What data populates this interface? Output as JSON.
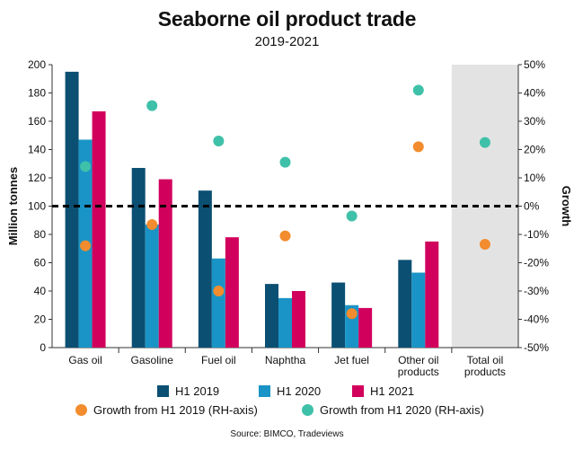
{
  "chart_data": {
    "type": "bar",
    "title": "Seaborne oil product trade",
    "subtitle": "2019-2021",
    "ylabel": "Million tonnes",
    "y2label": "Growth",
    "ylim": [
      0,
      200
    ],
    "yticks": [
      0,
      20,
      40,
      60,
      80,
      100,
      120,
      140,
      160,
      180,
      200
    ],
    "y2lim": [
      -50,
      50
    ],
    "y2ticks": [
      "-50%",
      "-40%",
      "-30%",
      "-20%",
      "-10%",
      "0%",
      "10%",
      "20%",
      "30%",
      "40%",
      "50%"
    ],
    "categories": [
      "Gas oil",
      "Gasoline",
      "Fuel oil",
      "Naphtha",
      "Jet fuel",
      "Other oil products",
      "Total oil products"
    ],
    "series": [
      {
        "name": "H1 2019",
        "color": "#0b4f72",
        "values": [
          195,
          127,
          111,
          45,
          46,
          62,
          null
        ]
      },
      {
        "name": "H1 2020",
        "color": "#1a94c6",
        "values": [
          147,
          87,
          63,
          35,
          30,
          53,
          null
        ]
      },
      {
        "name": "H1 2021",
        "color": "#d1005d",
        "values": [
          167,
          119,
          78,
          40,
          28,
          75,
          null
        ]
      }
    ],
    "growth_series": [
      {
        "name": "Growth from H1 2019 (RH-axis)",
        "color": "#f28c2e",
        "axis": "right",
        "values": [
          -14,
          -6.5,
          -30,
          -10.5,
          -38,
          21,
          -13.5
        ]
      },
      {
        "name": "Growth from H1 2020 (RH-axis)",
        "color": "#3fc1a9",
        "axis": "right",
        "values": [
          14,
          35.5,
          23,
          15.5,
          -3.5,
          41,
          22.5
        ]
      }
    ],
    "reference_line": {
      "y2": 0,
      "style": "dashed"
    },
    "highlighted_category": "Total oil products",
    "grid": false,
    "legend_position": "bottom",
    "source": "Source: BIMCO, Tradeviews"
  }
}
